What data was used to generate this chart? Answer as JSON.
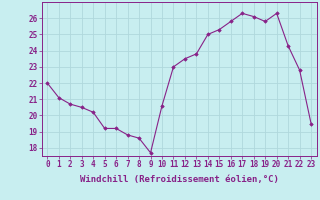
{
  "x": [
    0,
    1,
    2,
    3,
    4,
    5,
    6,
    7,
    8,
    9,
    10,
    11,
    12,
    13,
    14,
    15,
    16,
    17,
    18,
    19,
    20,
    21,
    22,
    23
  ],
  "y": [
    22.0,
    21.1,
    20.7,
    20.5,
    20.2,
    19.2,
    19.2,
    18.8,
    18.6,
    17.7,
    20.6,
    23.0,
    23.5,
    23.8,
    25.0,
    25.3,
    25.8,
    26.3,
    26.1,
    25.8,
    26.3,
    24.3,
    22.8,
    19.5
  ],
  "line_color": "#882288",
  "marker": "D",
  "marker_size": 1.8,
  "bg_color": "#c8eef0",
  "grid_color": "#b0d8dc",
  "ylabel_ticks": [
    18,
    19,
    20,
    21,
    22,
    23,
    24,
    25,
    26
  ],
  "xlabel": "Windchill (Refroidissement éolien,°C)",
  "ylim": [
    17.5,
    27.0
  ],
  "xlim": [
    -0.5,
    23.5
  ],
  "tick_fontsize": 5.5,
  "xlabel_fontsize": 6.5
}
